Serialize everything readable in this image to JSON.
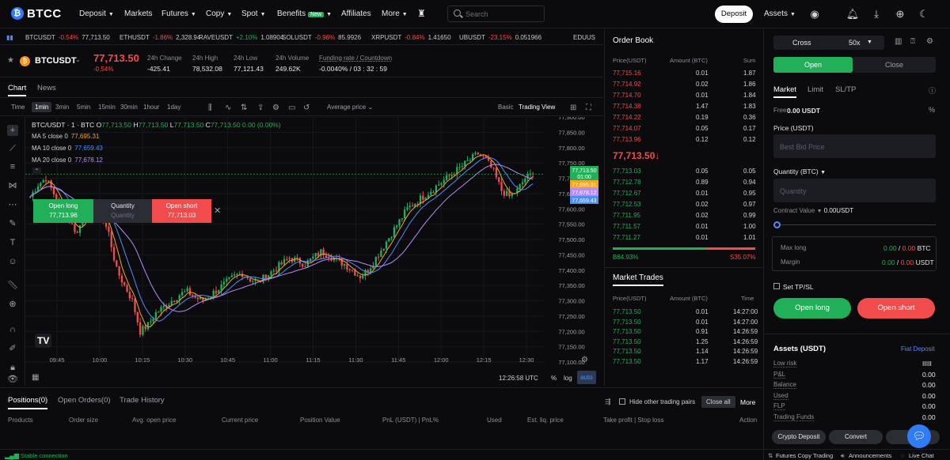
{
  "nav": {
    "logo": "BTCC",
    "deposit": "Deposit",
    "markets": "Markets",
    "futures": "Futures",
    "copy": "Copy",
    "spot": "Spot",
    "benefits": "Benefits",
    "new_badge": "New",
    "affiliates": "Affiliates",
    "more": "More",
    "search_placeholder": "Search",
    "deposit_button": "Deposit",
    "assets": "Assets"
  },
  "ticker": [
    {
      "sym": "BTCUSDT",
      "chg": "-0.54%",
      "price": "77,713.50",
      "dir": "dn"
    },
    {
      "sym": "ETHUSDT",
      "chg": "-1.86%",
      "price": "2,328.94",
      "dir": "dn"
    },
    {
      "sym": "RAVEUSDT",
      "chg": "+2.10%",
      "price": "1.08904",
      "dir": "up"
    },
    {
      "sym": "SOLUSDT",
      "chg": "-0.96%",
      "price": "85.9926",
      "dir": "dn"
    },
    {
      "sym": "XRPUSDT",
      "chg": "-0.84%",
      "price": "1.41650",
      "dir": "dn"
    },
    {
      "sym": "UBUSDT",
      "chg": "-23.15%",
      "price": "0.051966",
      "dir": "dn"
    },
    {
      "sym": "EDUUS",
      "chg": "",
      "price": "",
      "dir": "dn"
    }
  ],
  "symbol": {
    "name": "BTCUSDT",
    "price": "77,713.50",
    "change": "-0.54%",
    "stats": [
      {
        "label": "24h Change",
        "value": "-425.41"
      },
      {
        "label": "24h High",
        "value": "78,532.08"
      },
      {
        "label": "24h Low",
        "value": "77,121.43"
      },
      {
        "label": "24h Volume",
        "value": "249.62K"
      },
      {
        "label": "Funding rate / Countdown",
        "value": "-0.0040% / 03 : 32 : 59"
      }
    ]
  },
  "chart_tabs": {
    "chart": "Chart",
    "news": "News"
  },
  "toolbar": {
    "time": "Time",
    "intervals": [
      "1min",
      "3min",
      "5min",
      "15min",
      "30min",
      "1hour",
      "1day"
    ],
    "active_interval": "1min",
    "price_type": "Average price",
    "basic": "Basic",
    "trading_view": "Trading View"
  },
  "legend": {
    "title": "BTC/USDT · 1 · BTC",
    "o": "O",
    "o_val": "77,713.50",
    "h": "H",
    "h_val": "77,713.50",
    "l": "L",
    "l_val": "77,713.50",
    "c": "C",
    "c_val": "77,713.50",
    "chg": "0.00 (0.00%)",
    "ma": [
      {
        "label": "MA 5 close 0",
        "value": "77,695.31",
        "color": "#f5a623"
      },
      {
        "label": "MA 10 close 0",
        "value": "77,659.43",
        "color": "#4f8ef7"
      },
      {
        "label": "MA 20 close 0",
        "value": "77,678.12",
        "color": "#b88cf7"
      }
    ]
  },
  "quick": {
    "open_long": "Open long",
    "long_price": "77,713.96",
    "quantity": "Quantity",
    "quantity_ph": "Quantity",
    "open_short": "Open short",
    "short_price": "77,713.03"
  },
  "chart_data": {
    "type": "candlestick",
    "symbol": "BTC/USDT",
    "interval": "1min",
    "yticks": [
      "77,900.00",
      "77,850.00",
      "77,800.00",
      "77,750.00",
      "77,700.00",
      "77,650.00",
      "77,600.00",
      "77,550.00",
      "77,500.00",
      "77,450.00",
      "77,400.00",
      "77,350.00",
      "77,300.00",
      "77,250.00",
      "77,200.00",
      "77,150.00",
      "77,100.00"
    ],
    "xticks": [
      "09:45",
      "10:00",
      "10:15",
      "10:30",
      "10:45",
      "11:00",
      "11:15",
      "11:30",
      "11:45",
      "12:00",
      "12:15",
      "12:30"
    ],
    "ylim": [
      77100,
      77900
    ],
    "series": [
      {
        "name": "close",
        "values": [
          77640,
          77680,
          77700,
          77650,
          77600,
          77560,
          77520,
          77600,
          77620,
          77580,
          77520,
          77400,
          77350,
          77300,
          77200,
          77220,
          77260,
          77280,
          77300,
          77320,
          77330,
          77310,
          77300,
          77320,
          77340,
          77360,
          77380,
          77390,
          77370,
          77360,
          77380,
          77400,
          77420,
          77440,
          77430,
          77420,
          77440,
          77460,
          77450,
          77430,
          77420,
          77400,
          77380,
          77400,
          77440,
          77480,
          77520,
          77560,
          77600,
          77620,
          77640,
          77660,
          77680,
          77700,
          77720,
          77740,
          77760,
          77780,
          77760,
          77720,
          77660,
          77640,
          77660,
          77700,
          77714
        ]
      }
    ],
    "price_labels": [
      {
        "value": "77,713.50",
        "sub": "01:00",
        "color": "#21b059"
      },
      {
        "value": "77,695.31",
        "color": "#f5a623"
      },
      {
        "value": "77,678.12",
        "color": "#b88cf7"
      },
      {
        "value": "77,659.43",
        "color": "#4f8ef7"
      }
    ],
    "timestamp": "12:26:58 UTC",
    "scale_opts": [
      "%",
      "log",
      "auto"
    ]
  },
  "orderbook": {
    "title": "Order Book",
    "cols": [
      "Price(USDT)",
      "Amount (BTC)",
      "Sum"
    ],
    "asks": [
      [
        "77,715.16",
        "0.01",
        "1.87"
      ],
      [
        "77,714.92",
        "0.02",
        "1.86"
      ],
      [
        "77,714.70",
        "0.01",
        "1.84"
      ],
      [
        "77,714.38",
        "1.47",
        "1.83"
      ],
      [
        "77,714.22",
        "0.19",
        "0.36"
      ],
      [
        "77,714.07",
        "0.05",
        "0.17"
      ],
      [
        "77,713.96",
        "0.12",
        "0.12"
      ]
    ],
    "mid": "77,713.50↓",
    "bids": [
      [
        "77,713.03",
        "0.05",
        "0.05"
      ],
      [
        "77,712.78",
        "0.89",
        "0.94"
      ],
      [
        "77,712.67",
        "0.01",
        "0.95"
      ],
      [
        "77,712.53",
        "0.02",
        "0.97"
      ],
      [
        "77,711.95",
        "0.02",
        "0.99"
      ],
      [
        "77,711.57",
        "0.01",
        "1.00"
      ],
      [
        "77,711.27",
        "0.01",
        "1.01"
      ]
    ],
    "buy_pct": "B64.93%",
    "sell_pct": "S35.07%",
    "buy_frac": 0.6493
  },
  "trades": {
    "title": "Market Trades",
    "cols": [
      "Price(USDT)",
      "Amount (BTC)",
      "Time"
    ],
    "rows": [
      [
        "77,713.50",
        "0.01",
        "14:27:00"
      ],
      [
        "77,713.50",
        "0.01",
        "14:27:00"
      ],
      [
        "77,713.50",
        "0.91",
        "14:26:59"
      ],
      [
        "77,713.50",
        "1.25",
        "14:26:59"
      ],
      [
        "77,713.50",
        "1.14",
        "14:26:59"
      ],
      [
        "77,713.50",
        "1.17",
        "14:26:59"
      ]
    ]
  },
  "order": {
    "margin_mode": "Cross",
    "leverage": "50x",
    "open": "Open",
    "close": "Close",
    "market": "Market",
    "limit": "Limit",
    "sltp": "SL/TP",
    "free_label": "Free",
    "free_val": "0.00 USDT",
    "price_label": "Price (USDT)",
    "price_ph": "Best Bid Price",
    "qty_label": "Quantity (BTC)",
    "qty_ph": "Quantity",
    "contract_label": "Contract Value",
    "contract_val": "0.00USDT",
    "max_long": "Max long",
    "max_long_val_a": "0.00",
    "max_long_val_b": "0.00",
    "btc": "BTC",
    "margin": "Margin",
    "margin_a": "0.00",
    "margin_b": "0.00",
    "usdt": "USDT",
    "set_tpsl": "Set TP/SL",
    "open_long": "Open long",
    "open_short": "Open short"
  },
  "assets": {
    "title": "Assets (USDT)",
    "fiat": "Fiat Deposit",
    "rows": [
      {
        "label": "Low risk",
        "value": "IIIII"
      },
      {
        "label": "P&L",
        "value": "0.00"
      },
      {
        "label": "Balance",
        "value": "0.00"
      },
      {
        "label": "Used",
        "value": "0.00"
      },
      {
        "label": "FLP",
        "value": "0.00"
      },
      {
        "label": "Trading Funds",
        "value": "0.00"
      }
    ],
    "crypto_deposit": "Crypto Deposit",
    "convert": "Convert",
    "transfer": "Tr"
  },
  "bottom": {
    "positions": "Positions(0)",
    "open_orders": "Open Orders(0)",
    "history": "Trade History",
    "hide_other": "Hide other trading pairs",
    "close_all": "Close all",
    "more": "More",
    "cols": [
      "Products",
      "Order size",
      "Avg. open price",
      "Current price",
      "Position Value",
      "PnL (USDT) | PnL%",
      "Used",
      "Est. liq. price",
      "Take profit | Stop loss",
      "Action"
    ]
  },
  "status": {
    "conn": "Stable connection",
    "copy": "Futures Copy Trading",
    "ann": "Announcements",
    "chat": "Live Chat"
  }
}
